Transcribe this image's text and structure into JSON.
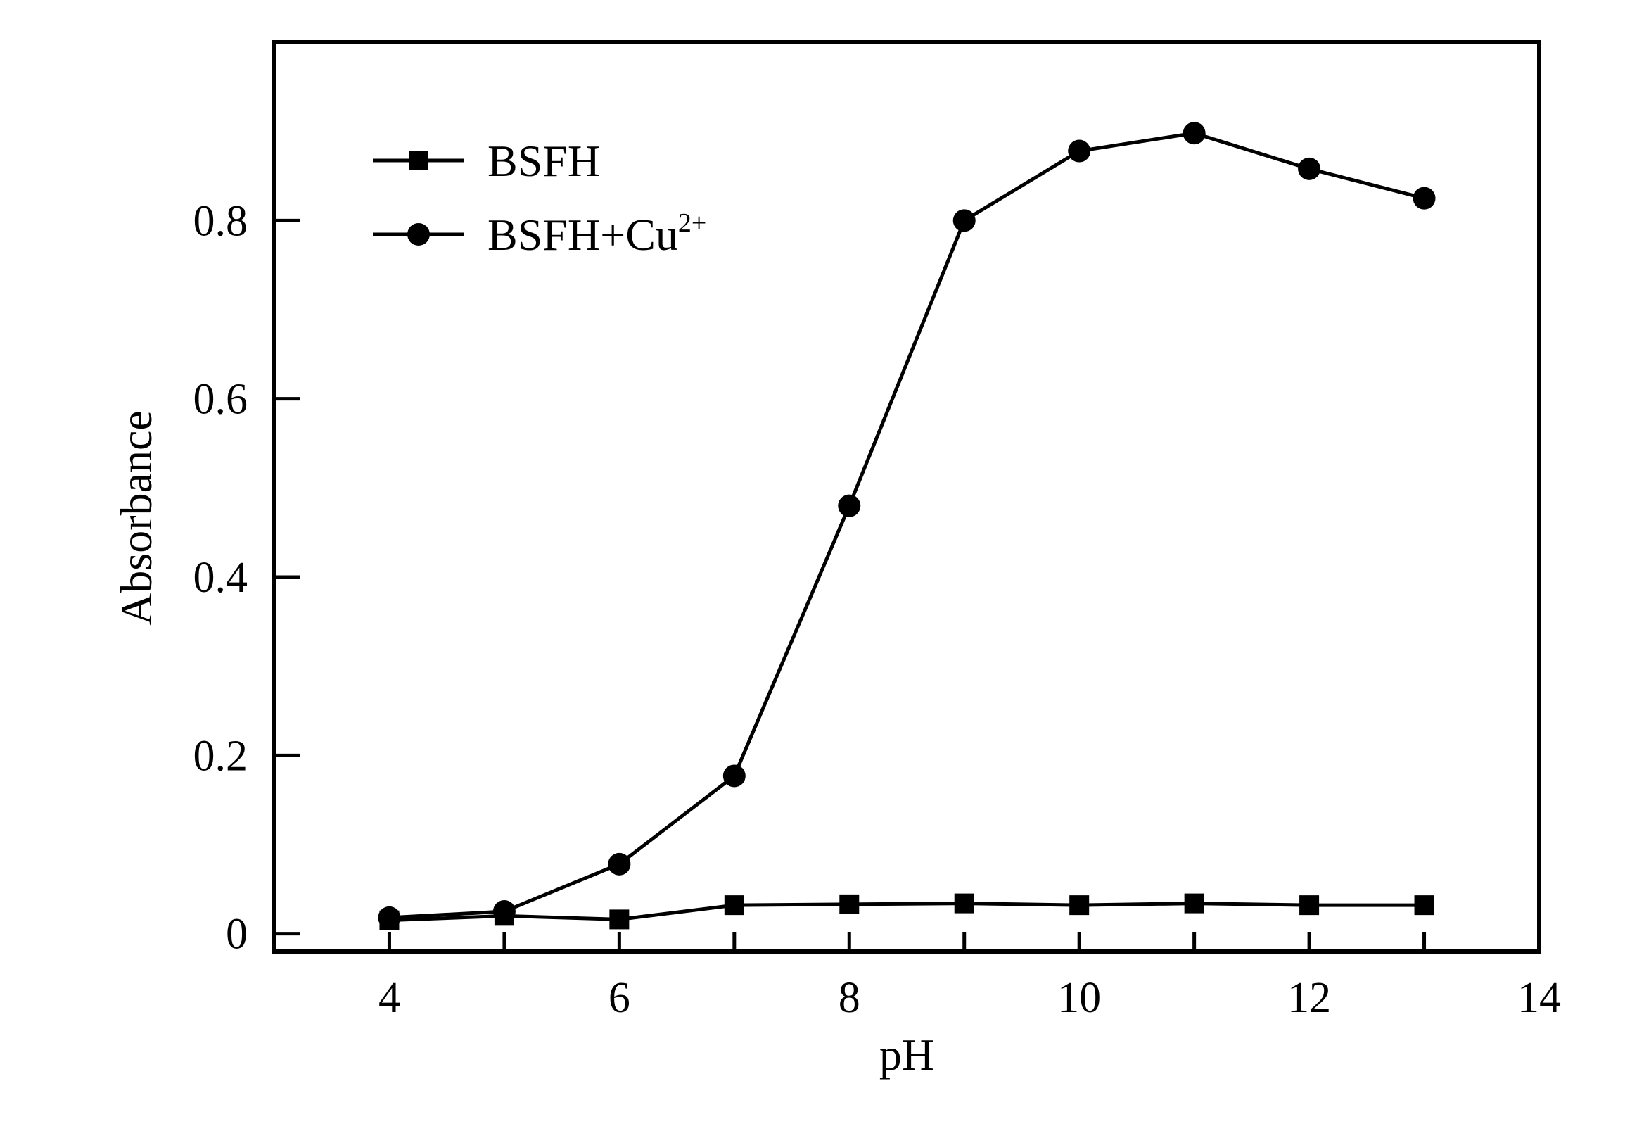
{
  "chart_data": {
    "type": "line",
    "xlabel": "pH",
    "ylabel": "Absorbance",
    "xlim": [
      3,
      14
    ],
    "ylim": [
      -0.02,
      1.0
    ],
    "xticks": [
      4,
      6,
      8,
      10,
      12,
      14
    ],
    "xtick_labels": [
      "4",
      "6",
      "8",
      "10",
      "12",
      "14"
    ],
    "yticks": [
      0,
      0.2,
      0.4,
      0.6,
      0.8
    ],
    "ytick_labels": [
      "0",
      "0.2",
      "0.4",
      "0.6",
      "0.8"
    ],
    "x_minor_ticks": [
      4,
      5,
      6,
      7,
      8,
      9,
      10,
      11,
      12,
      13
    ],
    "grid": false,
    "legend_position": "top-left",
    "line_color": "#000000",
    "series": [
      {
        "name": "BSFH",
        "marker": "square",
        "x": [
          4,
          5,
          6,
          7,
          8,
          9,
          10,
          11,
          12,
          13
        ],
        "y": [
          0.015,
          0.02,
          0.016,
          0.032,
          0.033,
          0.034,
          0.032,
          0.034,
          0.032,
          0.032
        ]
      },
      {
        "name": "BSFH+Cu2+",
        "label_base": "BSFH+Cu",
        "label_sup": "2+",
        "marker": "circle",
        "x": [
          4,
          5,
          6,
          7,
          8,
          9,
          10,
          11,
          12,
          13
        ],
        "y": [
          0.018,
          0.025,
          0.078,
          0.177,
          0.48,
          0.8,
          0.878,
          0.898,
          0.858,
          0.825
        ]
      }
    ]
  }
}
